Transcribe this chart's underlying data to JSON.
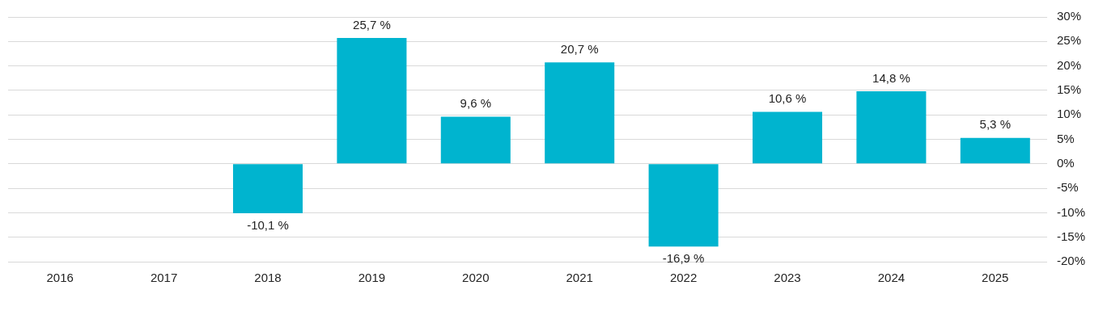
{
  "chart_data": {
    "type": "bar",
    "categories": [
      "2016",
      "2017",
      "2018",
      "2019",
      "2020",
      "2021",
      "2022",
      "2023",
      "2024",
      "2025"
    ],
    "values": [
      null,
      null,
      -10.1,
      25.7,
      9.6,
      20.7,
      -16.9,
      10.6,
      14.8,
      5.3
    ],
    "value_labels": [
      null,
      null,
      "-10,1 %",
      "25,7 %",
      "9,6 %",
      "20,7 %",
      "-16,9 %",
      "10,6 %",
      "14,8 %",
      "5,3 %"
    ],
    "color": "#00b4cf",
    "ylim": [
      -20,
      30
    ],
    "yticks": [
      {
        "value": 30,
        "label": "30%"
      },
      {
        "value": 25,
        "label": "25%"
      },
      {
        "value": 20,
        "label": "20%"
      },
      {
        "value": 15,
        "label": "15%"
      },
      {
        "value": 10,
        "label": "10%"
      },
      {
        "value": 5,
        "label": "5%"
      },
      {
        "value": 0,
        "label": "0%"
      },
      {
        "value": -5,
        "label": "-5%"
      },
      {
        "value": -10,
        "label": "-10%"
      },
      {
        "value": -15,
        "label": "-15%"
      },
      {
        "value": -20,
        "label": "-20%"
      }
    ],
    "grid": "y"
  }
}
